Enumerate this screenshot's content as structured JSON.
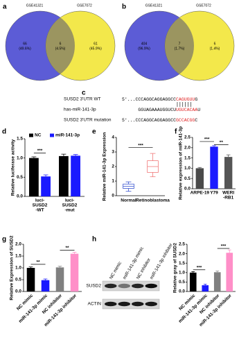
{
  "chart_data": [
    {
      "type": "venn",
      "panel": "a",
      "sets": [
        {
          "name": "GSE41321",
          "color": "#5c5cd6",
          "label_color": "#3b3bb0"
        },
        {
          "name": "GSE7072",
          "color": "#f3e84b",
          "label_color": "#8a8a30"
        }
      ],
      "overlap_color": "#9b9560",
      "regions": [
        {
          "count": 66,
          "label": "(49.6%)"
        },
        {
          "count": 6,
          "label": "(4.5%)"
        },
        {
          "count": 61,
          "label": "(45.9%)"
        }
      ]
    },
    {
      "type": "venn",
      "panel": "b",
      "sets": [
        {
          "name": "GSE41321",
          "color": "#5c5cd6",
          "label_color": "#3b3bb0"
        },
        {
          "name": "GSE7072",
          "color": "#f3e84b",
          "label_color": "#8a8a30"
        }
      ],
      "overlap_color": "#9b9560",
      "regions": [
        {
          "count": 404,
          "label": "(96.9%)"
        },
        {
          "count": 7,
          "label": "(1.7%)"
        },
        {
          "count": 6,
          "label": "(1.4%)"
        }
      ]
    },
    {
      "type": "sequence",
      "panel": "c",
      "rows": [
        {
          "label": "SUSD2 3'UTR WT",
          "segments": [
            {
              "text": "5'...CCCAGGCAGGAGGCC"
            },
            {
              "text": "CAGUGUU",
              "color": "#e02020"
            },
            {
              "text": "G"
            }
          ]
        },
        {
          "label": "has-miR-141-3p",
          "segments": [
            {
              "text": "GGUAGAAAUGGUCU"
            },
            {
              "text": "UGUCACAA",
              "color": "#e02020"
            },
            {
              "text": "U"
            }
          ]
        },
        {
          "label": "SUSD2 3'UTR mutation",
          "segments": [
            {
              "text": "5'...CCCAGGCAGGAGGCC"
            },
            {
              "text": "GCCACGG",
              "color": "#e02020"
            },
            {
              "text": "C"
            }
          ]
        }
      ]
    },
    {
      "type": "bar",
      "panel": "d",
      "ylabel": "Relative luciferase activity",
      "categories": [
        [
          "luci-",
          "SUSD2",
          "-WT"
        ],
        [
          "luci-",
          "SUSD2",
          "-mut"
        ]
      ],
      "series": [
        {
          "name": "NC",
          "color": "#000000",
          "values": [
            1.0,
            1.05
          ],
          "errors": [
            0.03,
            0.05
          ]
        },
        {
          "name": "miR-141-3p",
          "color": "#1a1aff",
          "values": [
            0.52,
            1.06
          ],
          "errors": [
            0.04,
            0.03
          ]
        }
      ],
      "ylim": [
        0,
        1.5
      ],
      "yticks": [
        {
          "value": 0,
          "label": "0.0"
        },
        {
          "value": 0.5,
          "label": "0.5"
        },
        {
          "value": 1,
          "label": "1.0"
        },
        {
          "value": 1.5,
          "label": "1.5"
        }
      ],
      "annotations": [
        "***"
      ]
    },
    {
      "type": "box",
      "panel": "e",
      "ylabel": "Relative miR-141-3p Expression",
      "categories": [
        "Normal",
        "Retinoblastoma"
      ],
      "colors": [
        "#3a55d0",
        "#f07878"
      ],
      "boxes": [
        {
          "min": 0.3,
          "q1": 0.5,
          "median": 0.65,
          "q3": 0.8,
          "max": 0.95
        },
        {
          "min": 1.3,
          "q1": 1.6,
          "median": 2.0,
          "q3": 2.4,
          "max": 2.9
        }
      ],
      "ylim": [
        0,
        4
      ],
      "yticks": [
        0,
        1,
        2,
        3,
        4
      ],
      "annotations": [
        "***"
      ]
    },
    {
      "type": "bar",
      "panel": "f",
      "ylabel": "Relative expression of miR-141-3p",
      "categories": [
        [
          "ARPE-19"
        ],
        [
          "Y79"
        ],
        [
          "WERI",
          "-RB1"
        ]
      ],
      "colors": [
        "#4a4a4a",
        "#1a1aff",
        "#555555"
      ],
      "values": [
        1.0,
        2.05,
        1.55
      ],
      "errors": [
        0.04,
        0.05,
        0.1
      ],
      "ylim": [
        0,
        2.5
      ],
      "yticks": [
        {
          "value": 0,
          "label": "0.0"
        },
        {
          "value": 0.5,
          "label": "0.5"
        },
        {
          "value": 1,
          "label": "1.0"
        },
        {
          "value": 1.5,
          "label": "1.5"
        },
        {
          "value": 2,
          "label": "2.0"
        },
        {
          "value": 2.5,
          "label": "2.5"
        }
      ],
      "annotations": [
        "***",
        "**"
      ]
    },
    {
      "type": "bar",
      "panel": "g",
      "ylabel": "Relative Expression of SUSD2",
      "categories": [
        "NC mimic",
        "miR-141-3p mimic",
        "NC inhibitor",
        "miR-141-3p inhibitor"
      ],
      "colors": [
        "#000000",
        "#1a1aff",
        "#808080",
        "#ff8fc8"
      ],
      "values": [
        1.0,
        0.48,
        1.02,
        1.6
      ],
      "errors": [
        0.04,
        0.05,
        0.05,
        0.06
      ],
      "ylim": [
        0,
        2.0
      ],
      "yticks": [
        {
          "value": 0,
          "label": "0.0"
        },
        {
          "value": 0.5,
          "label": "0.5"
        },
        {
          "value": 1,
          "label": "1.0"
        },
        {
          "value": 1.5,
          "label": "1.5"
        },
        {
          "value": 2,
          "label": "2.0"
        }
      ],
      "annotations": [
        "**",
        "**"
      ]
    },
    {
      "type": "blot",
      "panel": "h",
      "lanes": [
        "NC mimic",
        "miR-141-3p mimic",
        "NC inhibitor",
        "miR-141-3p inhibitor"
      ],
      "rows": [
        "SUSD2",
        "ACTIN"
      ]
    },
    {
      "type": "bar",
      "ylabel": "Relative gray of SUSD2",
      "categories": [
        "NC mimic",
        "miR-141-3p mimic",
        "NC inhibitor",
        "miR-141-3p inhibitor"
      ],
      "colors": [
        "#000000",
        "#1a1aff",
        "#808080",
        "#ff8fc8"
      ],
      "values": [
        1.0,
        0.33,
        1.02,
        2.05
      ],
      "errors": [
        0.05,
        0.06,
        0.06,
        0.15
      ],
      "ylim": [
        0,
        2.5
      ],
      "yticks": [
        {
          "value": 0,
          "label": "0.0"
        },
        {
          "value": 0.5,
          "label": "0.5"
        },
        {
          "value": 1,
          "label": "1.0"
        },
        {
          "value": 1.5,
          "label": "1.5"
        },
        {
          "value": 2,
          "label": "2.0"
        },
        {
          "value": 2.5,
          "label": "2.5"
        }
      ],
      "annotations": [
        "***",
        "***"
      ]
    }
  ]
}
